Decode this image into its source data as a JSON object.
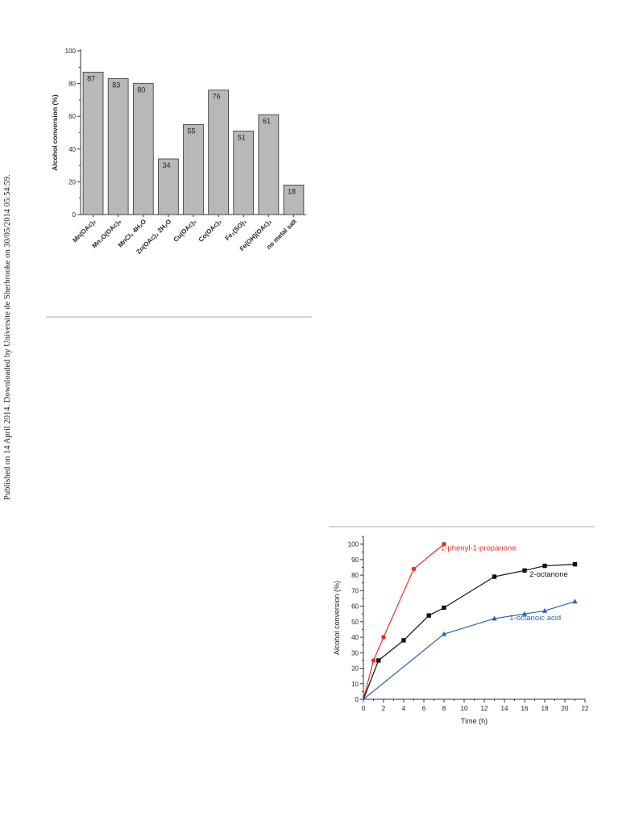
{
  "side_note": "Published on 14 April 2014. Downloaded by Universite de Sherbrooke on 30/05/2014 05:54:59.",
  "chart_data": [
    {
      "type": "bar",
      "ylabel": "Alcohol conversion (%)",
      "ylim": [
        0,
        100
      ],
      "yticks": [
        "0",
        "20",
        "40",
        "60",
        "80",
        "100"
      ],
      "categories": [
        "Mn(OAc)₂",
        "Mn₃O(OAc)₉",
        "MnCl₂ 4H₂O",
        "Zn(OAc)₂ 2H₂O",
        "Cu(OAc)₂",
        "Co(OAc)₂",
        "Fe₂(SO)₃",
        "Fe(OH)(OAc)₂",
        "no metal salt"
      ],
      "values": [
        87,
        83,
        80,
        34,
        55,
        76,
        51,
        61,
        18
      ],
      "value_labels": [
        "87",
        "83",
        "80",
        "34",
        "55",
        "76",
        "51",
        "61",
        "18"
      ],
      "bar_color": "#b8b8b8"
    },
    {
      "type": "line",
      "xlabel": "Time (h)",
      "ylabel": "Alcohol conversion (%)",
      "xlim": [
        0,
        22
      ],
      "ylim": [
        0,
        105
      ],
      "xticks": [
        "0",
        "2",
        "4",
        "6",
        "8",
        "10",
        "12",
        "14",
        "16",
        "18",
        "20",
        "22"
      ],
      "yticks": [
        "0",
        "10",
        "20",
        "30",
        "40",
        "50",
        "60",
        "70",
        "80",
        "90",
        "100"
      ],
      "series": [
        {
          "name": "1-phenyl-1-propanone",
          "color": "#e8302a",
          "marker": "circle",
          "x": [
            0,
            1,
            2,
            5,
            8
          ],
          "y": [
            0,
            25,
            40,
            84,
            100
          ]
        },
        {
          "name": "2-octanone",
          "color": "#111111",
          "marker": "square",
          "x": [
            0,
            1.5,
            4,
            6.5,
            8,
            13,
            16,
            18,
            21
          ],
          "y": [
            0,
            25,
            38,
            54,
            59,
            79,
            83,
            86,
            87
          ]
        },
        {
          "name": "1-octanoic acid",
          "color": "#2a62b4",
          "marker": "triangle",
          "x": [
            0,
            8,
            13,
            16,
            18,
            21
          ],
          "y": [
            0,
            42,
            52,
            55,
            57,
            63
          ]
        }
      ]
    }
  ]
}
